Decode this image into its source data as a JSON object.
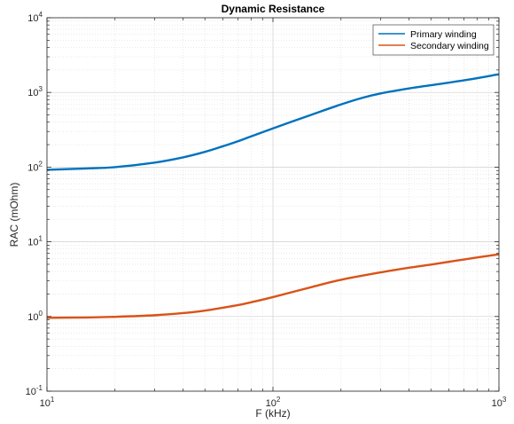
{
  "chart_data": {
    "type": "line",
    "title": "Dynamic Resistance",
    "xlabel": "F (kHz)",
    "ylabel": "RAC (mOhm)",
    "xscale": "log",
    "yscale": "log",
    "xlim": [
      10,
      1000
    ],
    "ylim": [
      0.1,
      10000
    ],
    "grid": true,
    "minor_grid": true,
    "legend_position": "top-right",
    "x_ticks": [
      {
        "value": 10,
        "base": "10",
        "exp": "1"
      },
      {
        "value": 100,
        "base": "10",
        "exp": "2"
      },
      {
        "value": 1000,
        "base": "10",
        "exp": "3"
      }
    ],
    "y_ticks": [
      {
        "value": 0.1,
        "base": "10",
        "exp": "-1"
      },
      {
        "value": 1,
        "base": "10",
        "exp": "0"
      },
      {
        "value": 10,
        "base": "10",
        "exp": "1"
      },
      {
        "value": 100,
        "base": "10",
        "exp": "2"
      },
      {
        "value": 1000,
        "base": "10",
        "exp": "3"
      },
      {
        "value": 10000,
        "base": "10",
        "exp": "4"
      }
    ],
    "series": [
      {
        "name": "Primary winding",
        "color": "#0072BD",
        "points": [
          [
            10,
            92
          ],
          [
            15,
            96
          ],
          [
            20,
            100
          ],
          [
            30,
            115
          ],
          [
            40,
            135
          ],
          [
            50,
            160
          ],
          [
            60,
            190
          ],
          [
            70,
            222
          ],
          [
            80,
            258
          ],
          [
            100,
            330
          ],
          [
            150,
            510
          ],
          [
            200,
            690
          ],
          [
            250,
            850
          ],
          [
            300,
            970
          ],
          [
            400,
            1130
          ],
          [
            500,
            1250
          ],
          [
            700,
            1450
          ],
          [
            1000,
            1750
          ]
        ]
      },
      {
        "name": "Secondary winding",
        "color": "#D95319",
        "points": [
          [
            10,
            0.96
          ],
          [
            15,
            0.97
          ],
          [
            20,
            0.99
          ],
          [
            30,
            1.04
          ],
          [
            40,
            1.11
          ],
          [
            50,
            1.2
          ],
          [
            60,
            1.31
          ],
          [
            70,
            1.42
          ],
          [
            80,
            1.55
          ],
          [
            100,
            1.82
          ],
          [
            150,
            2.5
          ],
          [
            200,
            3.1
          ],
          [
            300,
            3.9
          ],
          [
            400,
            4.5
          ],
          [
            500,
            4.95
          ],
          [
            700,
            5.8
          ],
          [
            1000,
            6.8
          ]
        ]
      }
    ]
  }
}
